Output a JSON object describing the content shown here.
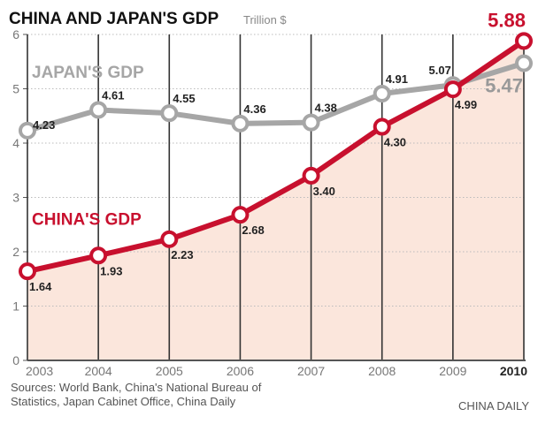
{
  "chart_data": {
    "type": "line",
    "title": "CHINA AND JAPAN'S GDP",
    "unit": "Trillion $",
    "x": [
      "2003",
      "2004",
      "2005",
      "2006",
      "2007",
      "2008",
      "2009",
      "2010"
    ],
    "yticks": [
      "0",
      "1",
      "2",
      "3",
      "4",
      "5",
      "6"
    ],
    "ylim": [
      0,
      6
    ],
    "grid": true,
    "series": [
      {
        "name": "JAPAN'S GDP",
        "color": "#a6a6a6",
        "values": [
          4.23,
          4.61,
          4.55,
          4.36,
          4.38,
          4.91,
          5.07,
          5.47
        ],
        "labels": [
          "4.23",
          "4.61",
          "4.55",
          "4.36",
          "4.38",
          "4.91",
          "5.07",
          "5.47"
        ]
      },
      {
        "name": "CHINA'S GDP",
        "color": "#c8102e",
        "values": [
          1.64,
          1.93,
          2.23,
          2.68,
          3.4,
          4.3,
          4.99,
          5.88
        ],
        "labels": [
          "1.64",
          "1.93",
          "2.23",
          "2.68",
          "3.40",
          "4.30",
          "4.99",
          "5.88"
        ]
      }
    ],
    "area_fill": "#fbe6dc"
  },
  "footer": {
    "sources_line1": "Sources: World Bank, China's National Bureau of",
    "sources_line2": "Statistics, Japan Cabinet Office, China Daily",
    "credit": "CHINA DAILY"
  }
}
